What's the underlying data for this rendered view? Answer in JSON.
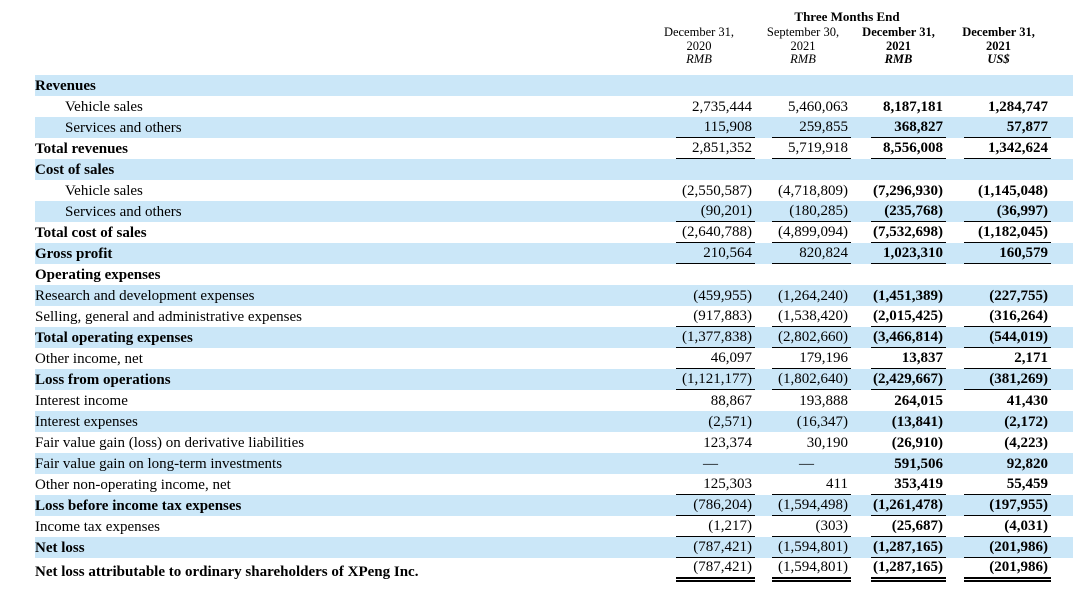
{
  "colors": {
    "row_stripe": "#cbe7f8",
    "text": "#000000",
    "rule": "#000000"
  },
  "table": {
    "period_group_header": "Three Months End",
    "columns": [
      {
        "date": "December 31,",
        "year": "2020",
        "currency": "RMB",
        "bold": false
      },
      {
        "date": "September 30,",
        "year": "2021",
        "currency": "RMB",
        "bold": false
      },
      {
        "date": "December 31,",
        "year": "2021",
        "currency": "RMB",
        "bold": true
      },
      {
        "date": "December 31,",
        "year": "2021",
        "currency": "US$",
        "bold": true
      }
    ],
    "rows": [
      {
        "label": "Revenues",
        "bold": true,
        "indent": false,
        "values": [
          "",
          "",
          "",
          ""
        ],
        "rule": "none"
      },
      {
        "label": "Vehicle sales",
        "bold": false,
        "indent": true,
        "values": [
          "2,735,444",
          "5,460,063",
          "8,187,181",
          "1,284,747"
        ],
        "rule": "none"
      },
      {
        "label": "Services and others",
        "bold": false,
        "indent": true,
        "values": [
          "115,908",
          "259,855",
          "368,827",
          "57,877"
        ],
        "rule": "single"
      },
      {
        "label": "Total revenues",
        "bold": true,
        "indent": false,
        "values": [
          "2,851,352",
          "5,719,918",
          "8,556,008",
          "1,342,624"
        ],
        "rule": "single"
      },
      {
        "label": "Cost of sales",
        "bold": true,
        "indent": false,
        "values": [
          "",
          "",
          "",
          ""
        ],
        "rule": "none"
      },
      {
        "label": "Vehicle sales",
        "bold": false,
        "indent": true,
        "values": [
          "(2,550,587)",
          "(4,718,809)",
          "(7,296,930)",
          "(1,145,048)"
        ],
        "rule": "none"
      },
      {
        "label": "Services and others",
        "bold": false,
        "indent": true,
        "values": [
          "(90,201)",
          "(180,285)",
          "(235,768)",
          "(36,997)"
        ],
        "rule": "single"
      },
      {
        "label": "Total cost of sales",
        "bold": true,
        "indent": false,
        "values": [
          "(2,640,788)",
          "(4,899,094)",
          "(7,532,698)",
          "(1,182,045)"
        ],
        "rule": "single"
      },
      {
        "label": "Gross profit",
        "bold": true,
        "indent": false,
        "values": [
          "210,564",
          "820,824",
          "1,023,310",
          "160,579"
        ],
        "rule": "single"
      },
      {
        "label": "Operating expenses",
        "bold": true,
        "indent": false,
        "values": [
          "",
          "",
          "",
          ""
        ],
        "rule": "none"
      },
      {
        "label": "Research and development expenses",
        "bold": false,
        "indent": false,
        "values": [
          "(459,955)",
          "(1,264,240)",
          "(1,451,389)",
          "(227,755)"
        ],
        "rule": "none"
      },
      {
        "label": "Selling, general and administrative expenses",
        "bold": false,
        "indent": false,
        "values": [
          "(917,883)",
          "(1,538,420)",
          "(2,015,425)",
          "(316,264)"
        ],
        "rule": "single"
      },
      {
        "label": "Total operating expenses",
        "bold": true,
        "indent": false,
        "values": [
          "(1,377,838)",
          "(2,802,660)",
          "(3,466,814)",
          "(544,019)"
        ],
        "rule": "single"
      },
      {
        "label": "Other income, net",
        "bold": false,
        "indent": false,
        "values": [
          "46,097",
          "179,196",
          "13,837",
          "2,171"
        ],
        "rule": "single"
      },
      {
        "label": "Loss from operations",
        "bold": true,
        "indent": false,
        "values": [
          "(1,121,177)",
          "(1,802,640)",
          "(2,429,667)",
          "(381,269)"
        ],
        "rule": "single"
      },
      {
        "label": "Interest income",
        "bold": false,
        "indent": false,
        "values": [
          "88,867",
          "193,888",
          "264,015",
          "41,430"
        ],
        "rule": "none"
      },
      {
        "label": "Interest expenses",
        "bold": false,
        "indent": false,
        "values": [
          "(2,571)",
          "(16,347)",
          "(13,841)",
          "(2,172)"
        ],
        "rule": "none"
      },
      {
        "label": "Fair value gain (loss) on derivative liabilities",
        "bold": false,
        "indent": false,
        "values": [
          "123,374",
          "30,190",
          "(26,910)",
          "(4,223)"
        ],
        "rule": "none"
      },
      {
        "label": "Fair value gain on long-term investments",
        "bold": false,
        "indent": false,
        "values": [
          "—",
          "—",
          "591,506",
          "92,820"
        ],
        "rule": "none"
      },
      {
        "label": "Other non-operating income, net",
        "bold": false,
        "indent": false,
        "values": [
          "125,303",
          "411",
          "353,419",
          "55,459"
        ],
        "rule": "single"
      },
      {
        "label": "Loss before income tax expenses",
        "bold": true,
        "indent": false,
        "values": [
          "(786,204)",
          "(1,594,498)",
          "(1,261,478)",
          "(197,955)"
        ],
        "rule": "single"
      },
      {
        "label": "Income tax expenses",
        "bold": false,
        "indent": false,
        "values": [
          "(1,217)",
          "(303)",
          "(25,687)",
          "(4,031)"
        ],
        "rule": "single"
      },
      {
        "label": "Net loss",
        "bold": true,
        "indent": false,
        "values": [
          "(787,421)",
          "(1,594,801)",
          "(1,287,165)",
          "(201,986)"
        ],
        "rule": "single"
      },
      {
        "label": "Net loss attributable to ordinary shareholders of XPeng Inc.",
        "bold": true,
        "indent": false,
        "values": [
          "(787,421)",
          "(1,594,801)",
          "(1,287,165)",
          "(201,986)"
        ],
        "rule": "double"
      }
    ]
  }
}
